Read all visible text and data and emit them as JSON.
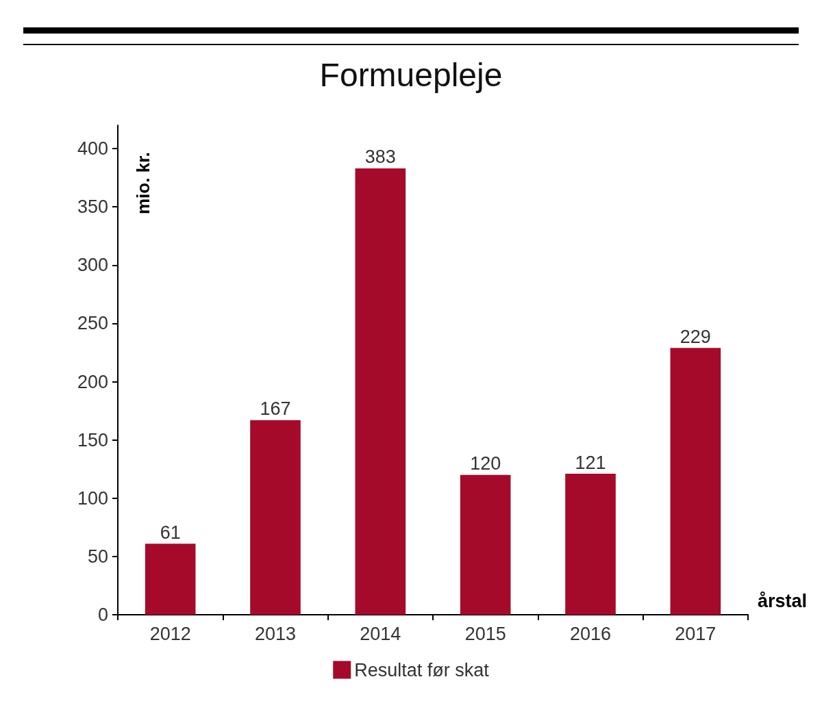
{
  "chart_data": {
    "type": "bar",
    "title": "Formuepleje",
    "xlabel": "årstal",
    "ylabel": "mio. kr.",
    "categories": [
      "2012",
      "2013",
      "2014",
      "2015",
      "2016",
      "2017"
    ],
    "series": [
      {
        "name": "Resultat før skat",
        "color": "#a50a2a",
        "values": [
          61,
          167,
          383,
          120,
          121,
          229
        ]
      }
    ],
    "ylim": [
      0,
      420
    ],
    "yticks": [
      0,
      50,
      100,
      150,
      200,
      250,
      300,
      350,
      400
    ],
    "data_labels": true,
    "grid": false,
    "legend": "bottom"
  }
}
